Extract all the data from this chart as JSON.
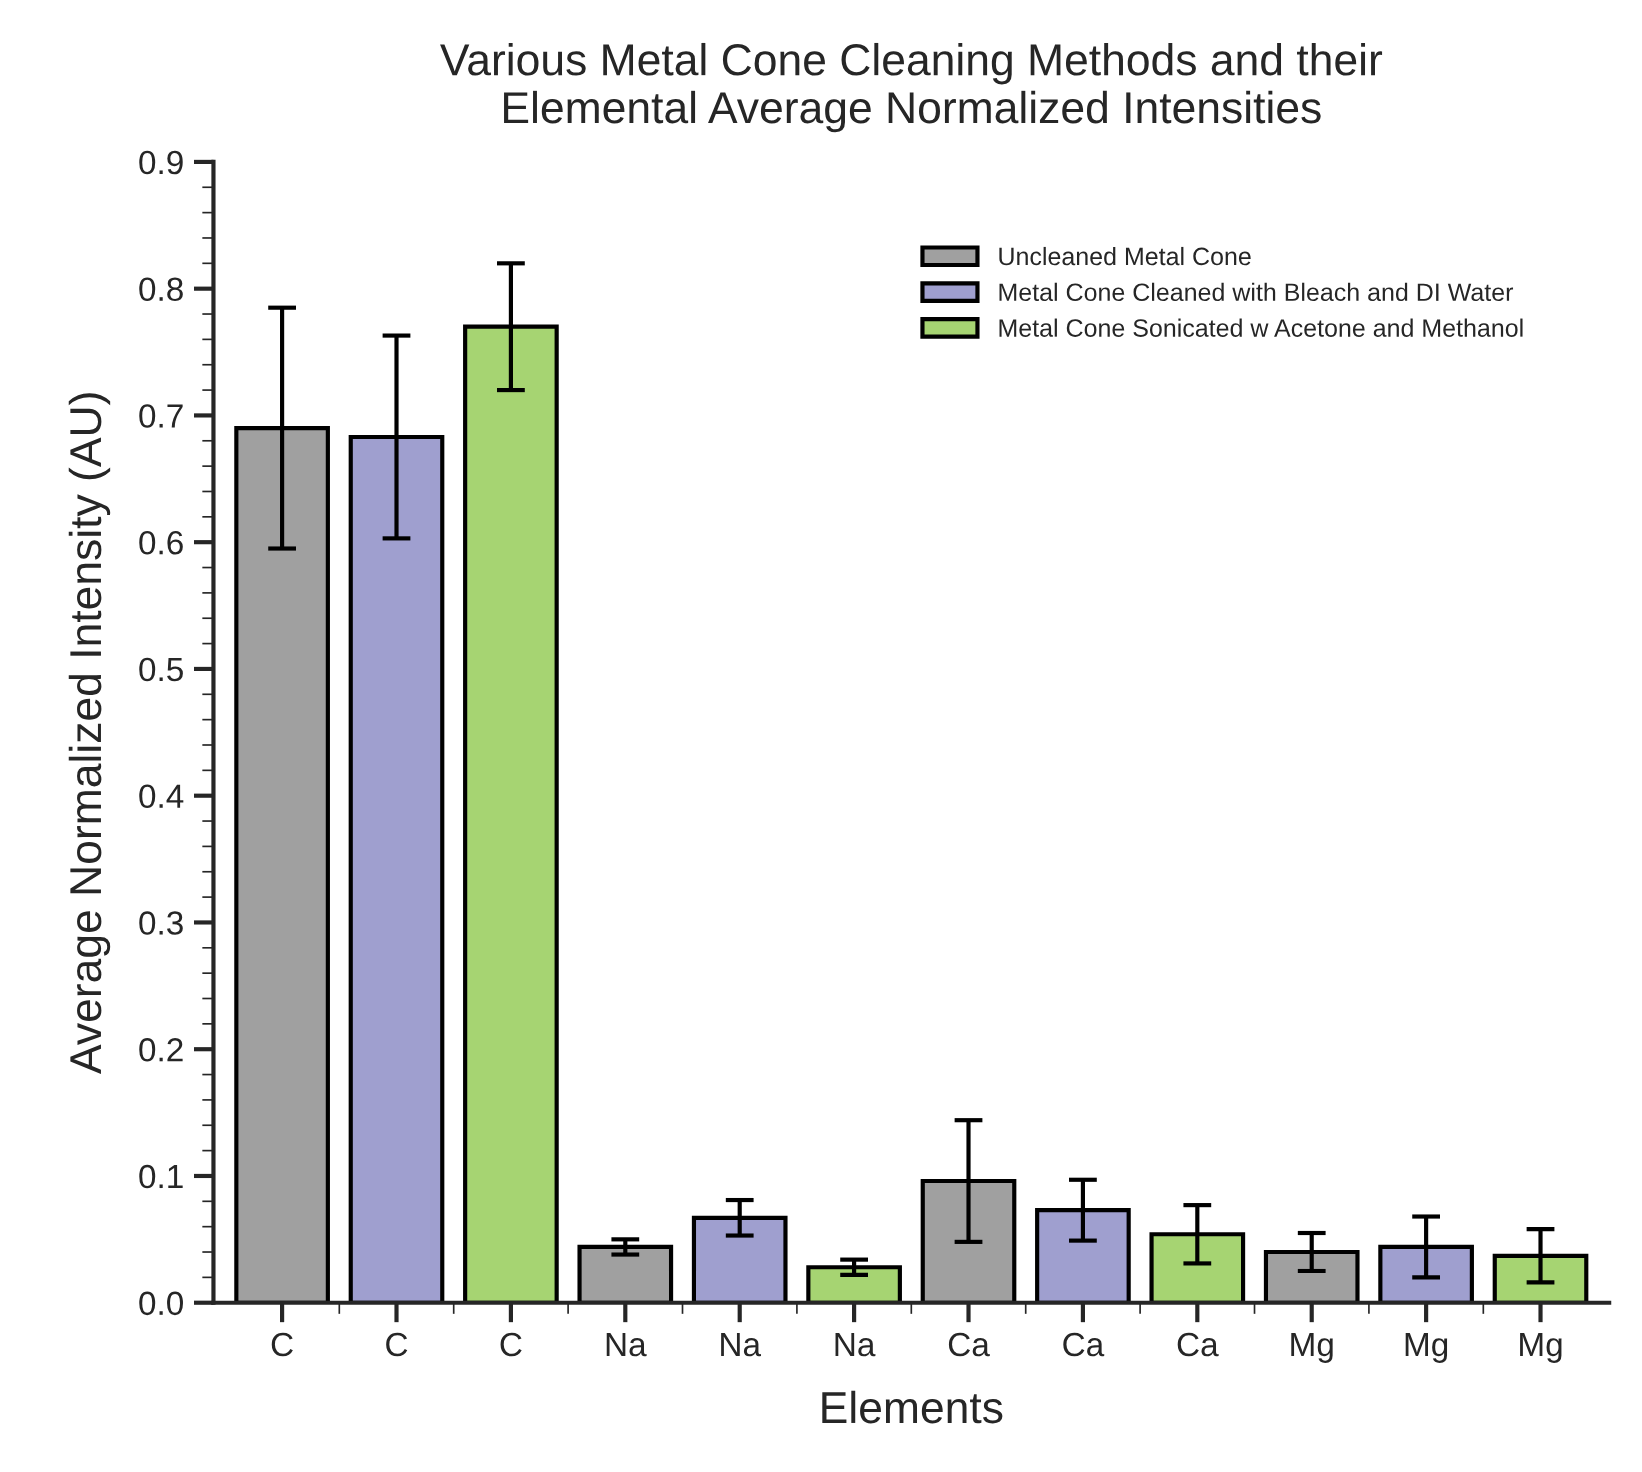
{
  "chart_data": {
    "type": "bar",
    "title": "Various Metal Cone Cleaning Methods and their\nElemental Average Normalized Intensities",
    "xlabel": "Elements",
    "ylabel": "Average Normalized Intensity (AU)",
    "categories": [
      "C",
      "C",
      "C",
      "Na",
      "Na",
      "Na",
      "Ca",
      "Ca",
      "Ca",
      "Mg",
      "Mg",
      "Mg"
    ],
    "series": [
      {
        "name": "Uncleaned Metal Cone",
        "color": "#a0a0a0",
        "values": [
          0.69,
          null,
          null,
          0.044,
          null,
          null,
          0.096,
          null,
          null,
          0.04,
          null,
          null
        ],
        "errors": [
          0.095,
          null,
          null,
          0.006,
          null,
          null,
          0.048,
          null,
          null,
          0.015,
          null,
          null
        ]
      },
      {
        "name": "Metal Cone Cleaned with Bleach and DI Water",
        "color": "#9f9fcf",
        "values": [
          null,
          0.683,
          null,
          null,
          0.067,
          null,
          null,
          0.073,
          null,
          null,
          0.044,
          null
        ],
        "errors": [
          null,
          0.08,
          null,
          null,
          0.014,
          null,
          null,
          0.024,
          null,
          null,
          0.024,
          null
        ]
      },
      {
        "name": "Metal Cone Sonicated w Acetone and Methanol",
        "color": "#a6d472",
        "values": [
          null,
          null,
          0.77,
          null,
          null,
          0.028,
          null,
          null,
          0.054,
          null,
          null,
          0.037
        ],
        "errors": [
          null,
          null,
          0.05,
          null,
          null,
          0.006,
          null,
          null,
          0.023,
          null,
          null,
          0.021
        ]
      }
    ],
    "ylim": [
      0,
      0.9
    ],
    "yticks": [
      {
        "value": 0,
        "label": "0.0"
      },
      0.1,
      0.2,
      0.3,
      0.4,
      0.5,
      0.6,
      0.7,
      0.8,
      0.9
    ],
    "grid": false,
    "legend": "top right"
  }
}
